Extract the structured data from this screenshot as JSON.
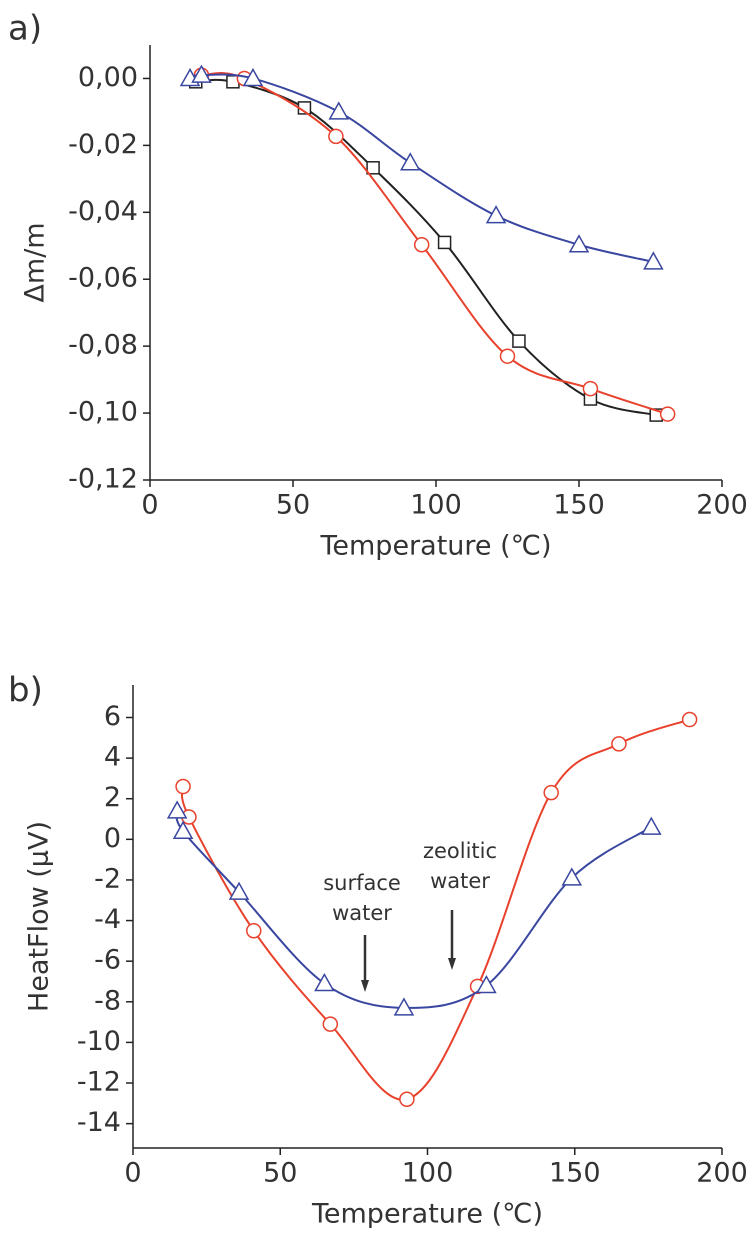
{
  "chart_data": [
    {
      "type": "line",
      "panel_label": "a)",
      "x_label": "Temperature (℃)",
      "y_label": "Δm/m",
      "xlim": [
        0,
        200
      ],
      "xticks": [
        0,
        50,
        100,
        150,
        200
      ],
      "ylim": [
        -0.12,
        0.01
      ],
      "yticks": [
        {
          "value": 0,
          "label": "0,00"
        },
        {
          "value": -0.02,
          "label": "-0,02"
        },
        {
          "value": -0.04,
          "label": "-0,04"
        },
        {
          "value": -0.06,
          "label": "-0,06"
        },
        {
          "value": -0.08,
          "label": "-0,08"
        },
        {
          "value": -0.1,
          "label": "-0,10"
        },
        {
          "value": -0.12,
          "label": "-0,12"
        }
      ],
      "series": [
        {
          "marker": "square",
          "color": "#222222",
          "x": [
            16,
            29,
            54,
            78,
            103,
            129,
            154,
            177
          ],
          "values": [
            -0.001,
            -0.001,
            -0.0088,
            -0.0267,
            -0.049,
            -0.0785,
            -0.0958,
            -0.1006
          ]
        },
        {
          "marker": "circle",
          "color": "#e8412c",
          "x": [
            18,
            33,
            65,
            95,
            125,
            154,
            181
          ],
          "values": [
            0.001,
            0.0,
            -0.0173,
            -0.0497,
            -0.083,
            -0.0927,
            -0.1003
          ]
        },
        {
          "marker": "triangle",
          "color": "#3a47a0",
          "x": [
            14,
            18,
            36,
            66,
            91,
            121,
            150,
            176
          ],
          "values": [
            0.0,
            0.001,
            0.0,
            -0.01,
            -0.0252,
            -0.041,
            -0.0497,
            -0.0548
          ]
        }
      ]
    },
    {
      "type": "line",
      "panel_label": "b)",
      "x_label": "Temperature (℃)",
      "y_label": "HeatFlow (µV)",
      "xlim": [
        0,
        200
      ],
      "xticks": [
        0,
        50,
        100,
        150,
        200
      ],
      "ylim": [
        -15.2,
        7.6
      ],
      "yticks": [
        -14,
        -12,
        -10,
        -8,
        -6,
        -4,
        -2,
        0,
        2,
        4,
        6
      ],
      "annotations": [
        [
          "surface",
          "water"
        ],
        [
          "zeolitic",
          "water"
        ]
      ],
      "series": [
        {
          "marker": "circle",
          "color": "#e8412c",
          "x": [
            17,
            19,
            41,
            67,
            93,
            117,
            142,
            165,
            189
          ],
          "values": [
            2.6,
            1.1,
            -4.5,
            -9.1,
            -12.8,
            -7.24,
            2.3,
            4.7,
            5.9
          ]
        },
        {
          "marker": "triangle",
          "color": "#3a47a0",
          "x": [
            15,
            17,
            36,
            65,
            92,
            120,
            149,
            176
          ],
          "values": [
            1.4,
            0.4,
            -2.6,
            -7.1,
            -8.3,
            -7.2,
            -1.9,
            0.6
          ]
        }
      ]
    }
  ]
}
